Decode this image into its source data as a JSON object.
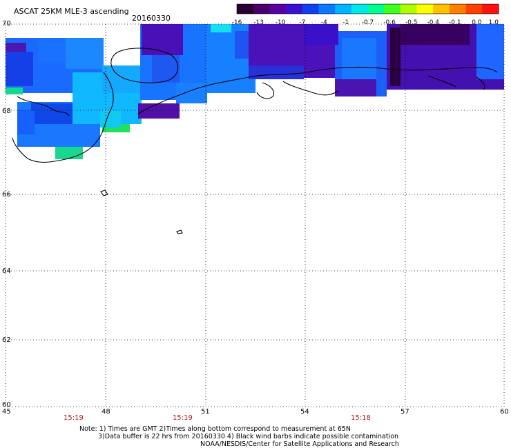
{
  "header": {
    "title": "ASCAT 25KM MLE-3 ascending",
    "date": "20160330"
  },
  "colorbar": {
    "labels": [
      "-16",
      "-13",
      "-10",
      "-7",
      "-4",
      "-1",
      "-0.7",
      "-0.6",
      "-0.5",
      "-0.4",
      "-0.1",
      "0.0",
      "1.0"
    ],
    "colors": [
      "#2a0033",
      "#4a006a",
      "#5a00a0",
      "#3a10d0",
      "#1040f0",
      "#0a78ff",
      "#00b4ff",
      "#00e8e8",
      "#00ff90",
      "#40ff20",
      "#b0ff00",
      "#ffff00",
      "#ffc000",
      "#ff8000",
      "#ff4000",
      "#ff1010"
    ]
  },
  "axes": {
    "lat_labels": [
      "70",
      "68",
      "66",
      "64",
      "62",
      "60"
    ],
    "lon_labels": [
      "45",
      "48",
      "51",
      "54",
      "57",
      "60"
    ]
  },
  "times": [
    "15:19",
    "15:19",
    "15:18"
  ],
  "notes": [
    "Note: 1) Times are GMT 2)Times along bottom correspond to measurement at 65N",
    "3)Data buffer is 22 hrs from 20160330 4) Black wind barbs indicate possible contamination",
    "NOAA/NESDIS/Center for Satellite Applications and Research"
  ]
}
